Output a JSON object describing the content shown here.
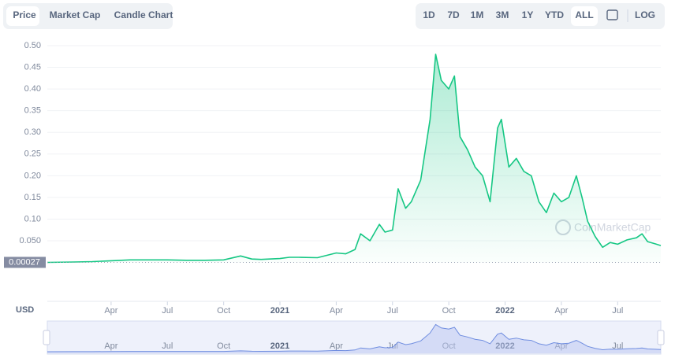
{
  "toolbar": {
    "tabs": [
      "Price",
      "Market Cap",
      "Candle Chart"
    ],
    "ranges": [
      "1D",
      "7D",
      "1M",
      "3M",
      "1Y",
      "YTD",
      "ALL"
    ],
    "log_button": "LOG"
  },
  "chart_data": {
    "type": "area",
    "color": "#16c784",
    "currency_label": "USD",
    "watermark": "CoinMarketCap",
    "reference_line": {
      "value": 0.00027,
      "label": "0.00027"
    },
    "x": [
      -0.4,
      1,
      2,
      3,
      4,
      5,
      6,
      7,
      8,
      9,
      9.9,
      10.5,
      11,
      12,
      12.5,
      13,
      14,
      15,
      15.5,
      16,
      16.3,
      16.8,
      17.3,
      17.6,
      18,
      18.3,
      18.7,
      19,
      19.5,
      20,
      20.3,
      20.6,
      21,
      21.3,
      21.6,
      22,
      22.4,
      22.8,
      23.2,
      23.6,
      23.8,
      24.2,
      24.6,
      25,
      25.4,
      25.8,
      26.2,
      26.6,
      27,
      27.4,
      27.8,
      28.1,
      28.4,
      28.8,
      29.2,
      29.6,
      30,
      30.5,
      31,
      31.3,
      31.6,
      32,
      32.3
    ],
    "values": [
      0.00027,
      0.001,
      0.002,
      0.004,
      0.006,
      0.006,
      0.006,
      0.005,
      0.005,
      0.006,
      0.015,
      0.008,
      0.007,
      0.009,
      0.012,
      0.012,
      0.011,
      0.022,
      0.02,
      0.03,
      0.066,
      0.05,
      0.088,
      0.07,
      0.075,
      0.17,
      0.125,
      0.14,
      0.19,
      0.33,
      0.48,
      0.42,
      0.4,
      0.43,
      0.29,
      0.26,
      0.22,
      0.2,
      0.14,
      0.31,
      0.33,
      0.22,
      0.24,
      0.21,
      0.2,
      0.14,
      0.115,
      0.16,
      0.14,
      0.15,
      0.2,
      0.15,
      0.095,
      0.06,
      0.035,
      0.046,
      0.042,
      0.052,
      0.057,
      0.066,
      0.048,
      0.043,
      0.039
    ],
    "xlim": [
      -0.4,
      32.3
    ],
    "xticks": [
      {
        "value": 3,
        "label": "Apr"
      },
      {
        "value": 6,
        "label": "Jul"
      },
      {
        "value": 9,
        "label": "Oct"
      },
      {
        "value": 12,
        "label": "2021"
      },
      {
        "value": 15,
        "label": "Apr"
      },
      {
        "value": 18,
        "label": "Jul"
      },
      {
        "value": 21,
        "label": "Oct"
      },
      {
        "value": 24,
        "label": "2022"
      },
      {
        "value": 27,
        "label": "Apr"
      },
      {
        "value": 30,
        "label": "Jul"
      }
    ],
    "ylim": [
      0,
      0.5
    ],
    "yticks": [
      {
        "value": 0.05,
        "label": "0.050"
      },
      {
        "value": 0.1,
        "label": "0.10"
      },
      0.15,
      {
        "value": 0.2,
        "label": "0.20"
      },
      0.25,
      {
        "value": 0.3,
        "label": "0.30"
      },
      0.35,
      {
        "value": 0.4,
        "label": "0.40"
      },
      0.45,
      {
        "value": 0.5,
        "label": "0.50"
      }
    ],
    "grid": true
  }
}
